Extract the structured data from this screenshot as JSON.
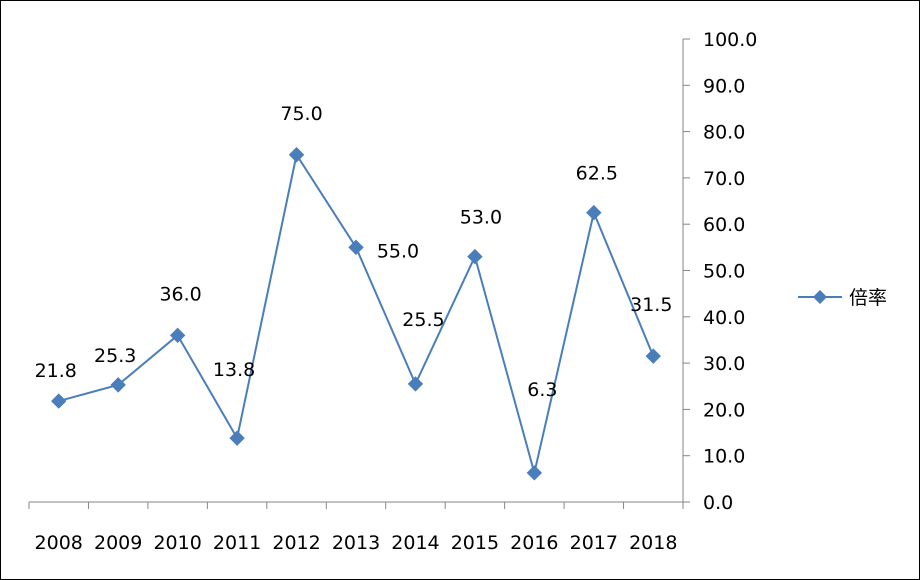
{
  "chart_data": {
    "type": "line",
    "categories": [
      "2008",
      "2009",
      "2010",
      "2011",
      "2012",
      "2013",
      "2014",
      "2015",
      "2016",
      "2017",
      "2018"
    ],
    "series": [
      {
        "name": "倍率",
        "values": [
          21.8,
          25.3,
          36.0,
          13.8,
          75.0,
          55.0,
          25.5,
          53.0,
          6.3,
          62.5,
          31.5
        ],
        "labels": [
          "21.8",
          "25.3",
          "36.0",
          "13.8",
          "75.0",
          "55.0",
          "25.5",
          "53.0",
          "6.3",
          "62.5",
          "31.5"
        ],
        "color": "#4a7ebb",
        "marker": "diamond"
      }
    ],
    "y_ticks": [
      "0.0",
      "10.0",
      "20.0",
      "30.0",
      "40.0",
      "50.0",
      "60.0",
      "70.0",
      "80.0",
      "90.0",
      "100.0"
    ],
    "ylim": [
      0,
      100
    ],
    "y_axis_side": "right",
    "grid": false,
    "legend_position": "right"
  }
}
